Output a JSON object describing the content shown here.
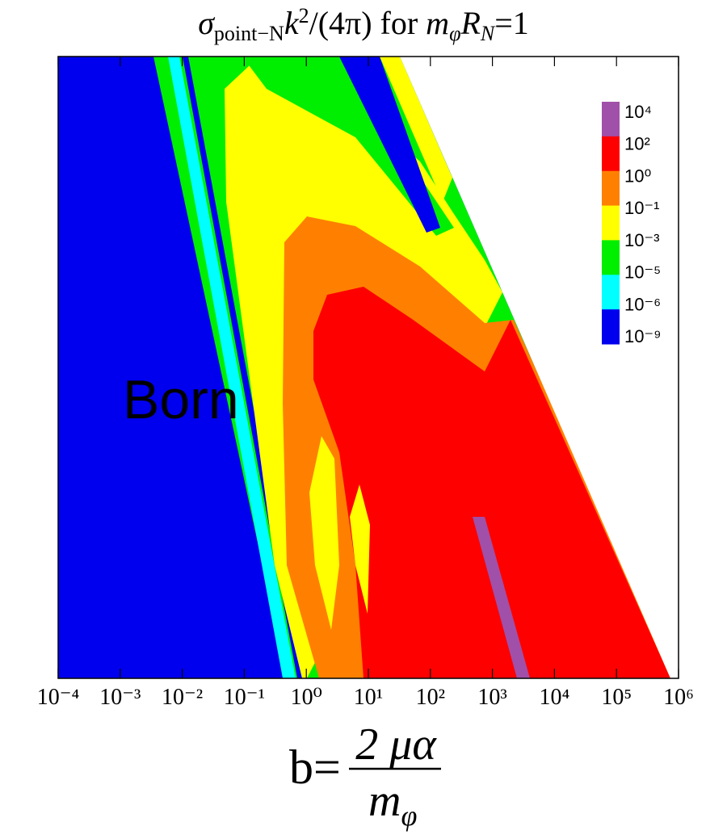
{
  "chart_data": {
    "type": "contour",
    "title": [
      "σ",
      "point−N",
      "k",
      "2",
      "/(4π) for ",
      "m",
      "φ",
      "R",
      "N",
      "=1"
    ],
    "x_label": [
      "b=",
      "2 μα",
      "m",
      "φ"
    ],
    "annotation": "Born",
    "xscale": "log",
    "xlim": [
      0.0001,
      1000000
    ],
    "xticks": [
      {
        "value": 0.0001,
        "label": "10⁻⁴"
      },
      {
        "value": 0.001,
        "label": "10⁻³"
      },
      {
        "value": 0.01,
        "label": "10⁻²"
      },
      {
        "value": 0.1,
        "label": "10⁻¹"
      },
      {
        "value": 1,
        "label": "10⁰"
      },
      {
        "value": 10,
        "label": "10¹"
      },
      {
        "value": 100,
        "label": "10²"
      },
      {
        "value": 1000,
        "label": "10³"
      },
      {
        "value": 10000,
        "label": "10⁴"
      },
      {
        "value": 100000,
        "label": "10⁵"
      },
      {
        "value": 1000000,
        "label": "10⁶"
      }
    ],
    "colorbar": {
      "levels": [
        {
          "value": 10000,
          "label": "10⁴"
        },
        {
          "value": 100,
          "label": "10²"
        },
        {
          "value": 1,
          "label": "10⁰"
        },
        {
          "value": 0.1,
          "label": "10⁻¹"
        },
        {
          "value": 0.001,
          "label": "10⁻³"
        },
        {
          "value": 1e-05,
          "label": "10⁻⁵"
        },
        {
          "value": 1e-06,
          "label": "10⁻⁶"
        },
        {
          "value": 1e-09,
          "label": "10⁻⁹"
        }
      ],
      "colors": [
        "#a050a8",
        "#ff0000",
        "#ff8000",
        "#ffff00",
        "#00ee00",
        "#00ffff",
        "#0000ee"
      ]
    }
  }
}
